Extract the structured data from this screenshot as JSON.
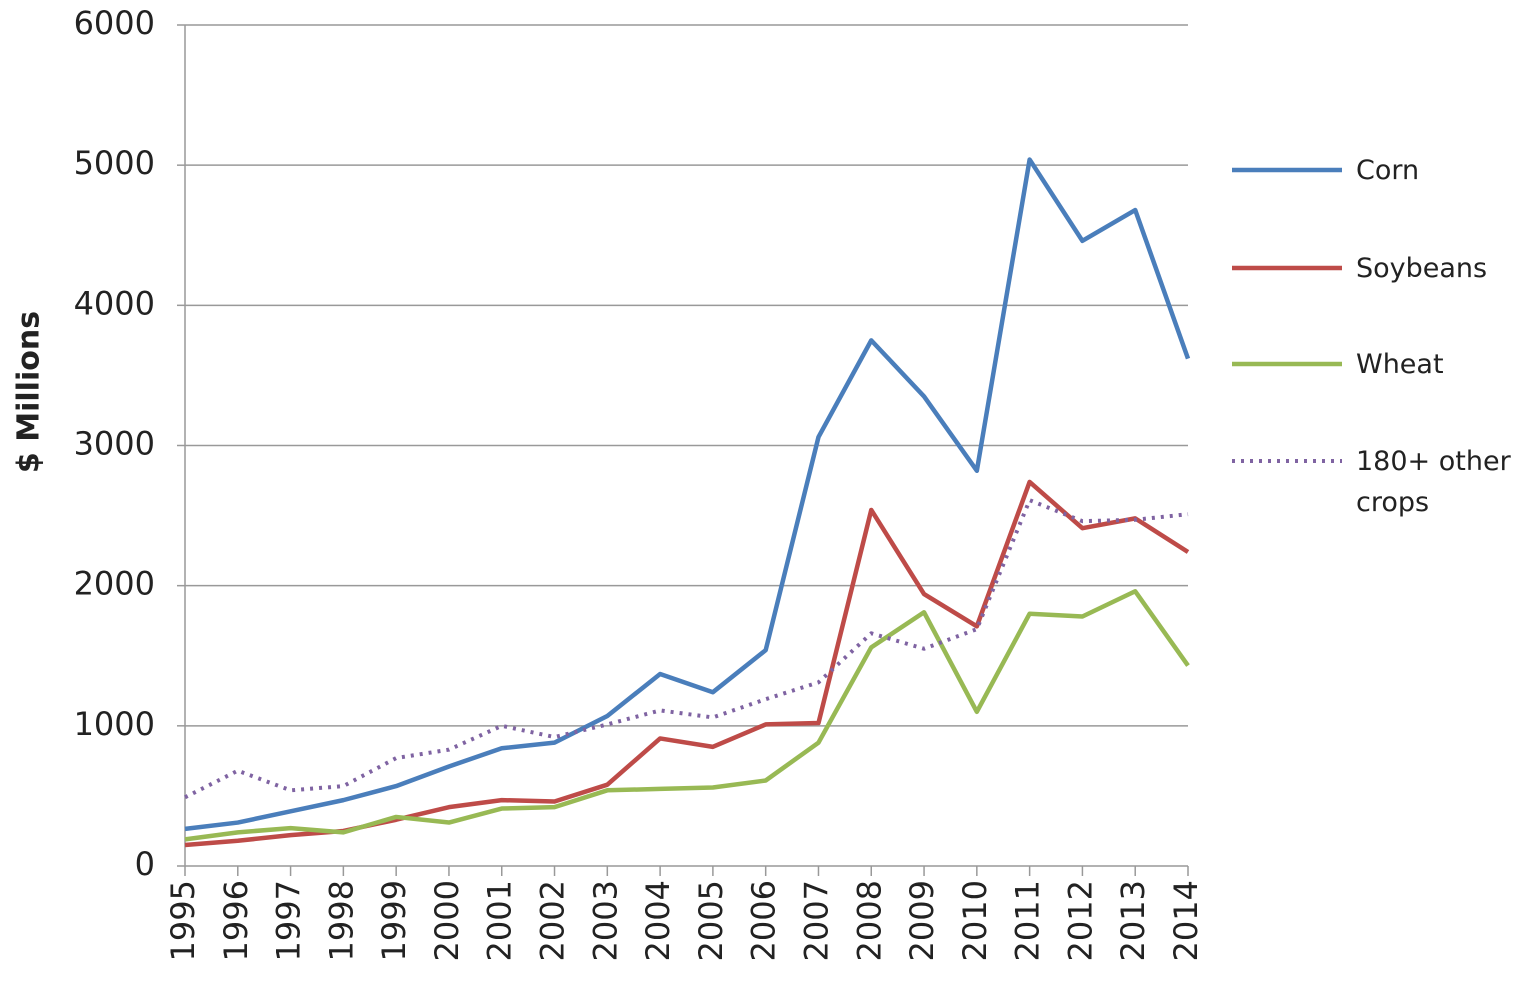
{
  "chart_data": {
    "type": "line",
    "y_label": "$ Millions",
    "categories": [
      "1995",
      "1996",
      "1997",
      "1998",
      "1999",
      "2000",
      "2001",
      "2002",
      "2003",
      "2004",
      "2005",
      "2006",
      "2007",
      "2008",
      "2009",
      "2010",
      "2011",
      "2012",
      "2013",
      "2014"
    ],
    "series": [
      {
        "name": "Corn",
        "color": "#4a7ebb",
        "style": "solid",
        "values": [
          265,
          310,
          390,
          470,
          570,
          710,
          840,
          880,
          1070,
          1370,
          1240,
          1540,
          3060,
          3750,
          3350,
          2820,
          5040,
          4460,
          4680,
          3620
        ]
      },
      {
        "name": "Soybeans",
        "color": "#be4b48",
        "style": "solid",
        "values": [
          150,
          180,
          220,
          250,
          330,
          420,
          470,
          460,
          580,
          910,
          850,
          1010,
          1020,
          2540,
          1940,
          1710,
          2740,
          2410,
          2480,
          2240
        ]
      },
      {
        "name": "Wheat",
        "color": "#98b954",
        "style": "solid",
        "values": [
          190,
          240,
          270,
          240,
          350,
          310,
          410,
          420,
          540,
          550,
          560,
          610,
          880,
          1560,
          1810,
          1100,
          1800,
          1780,
          1960,
          1430
        ]
      },
      {
        "name": "180+ other crops",
        "color": "#7f63a2",
        "style": "dotted",
        "values": [
          490,
          680,
          540,
          570,
          770,
          830,
          1000,
          920,
          1010,
          1110,
          1060,
          1190,
          1310,
          1660,
          1550,
          1690,
          2610,
          2460,
          2470,
          2510
        ]
      }
    ],
    "ylim": [
      0,
      6000
    ],
    "yticks": [
      0,
      1000,
      2000,
      3000,
      4000,
      5000,
      6000
    ],
    "grid": true,
    "legend": "right"
  }
}
